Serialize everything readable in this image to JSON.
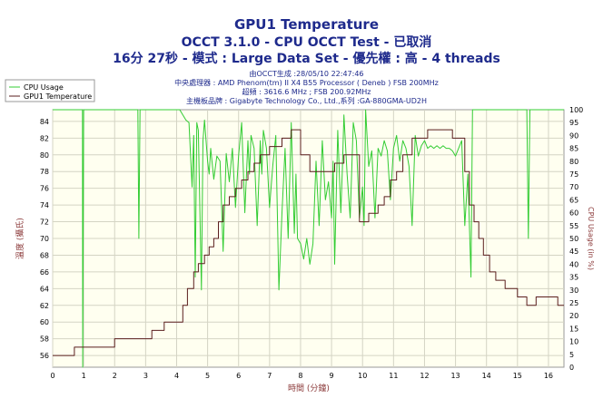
{
  "header": {
    "title": "GPU1 Temperature",
    "subtitle": "OCCT 3.1.0 - CPU OCCT Test - 已取消",
    "detail": "16分 27秒 - 模式 : Large Data Set - 優先權 : 高 - 4 threads",
    "info_lines": [
      "由OCCT生成 :28/05/10 22:47:46",
      "中央處理器 : AMD Phenom(tm) II X4 B55 Processor ( Deneb ) FSB 200MHz",
      "超頻 : 3616.6 MHz ; FSB 200.92MHz",
      "主機板品牌 : Gigabyte Technology Co., Ltd.,系列 :GA-880GMA-UD2H"
    ]
  },
  "colors": {
    "cpu_usage": "#33cc33",
    "gpu_temp": "#5a1e1e",
    "plot_bg": "#fffff0",
    "title_text": "#1e2a8c",
    "right_axis_text": "#8b3a3a"
  },
  "chart_data": {
    "type": "line",
    "xlabel": "時間 (分鐘)",
    "ylabel_left": "溫度 (攝氏)",
    "ylabel_right": "CPU Usage (in %)",
    "xlim": [
      0,
      16.5
    ],
    "ylim_left": [
      54.6,
      85.4
    ],
    "ylim_right": [
      0,
      100
    ],
    "x_ticks": [
      0,
      1,
      2,
      3,
      4,
      5,
      6,
      7,
      8,
      9,
      10,
      11,
      12,
      13,
      14,
      15,
      16
    ],
    "y_ticks_left": [
      56,
      58,
      60,
      62,
      64,
      66,
      68,
      70,
      72,
      74,
      76,
      78,
      80,
      82,
      84
    ],
    "y_ticks_right": [
      0,
      5,
      10,
      15,
      20,
      25,
      30,
      35,
      40,
      45,
      50,
      55,
      60,
      65,
      70,
      75,
      80,
      85,
      90,
      95,
      100
    ],
    "grid": true,
    "legend": "top-left",
    "series": [
      {
        "name": "CPU Usage",
        "axis": "right",
        "x": [
          0,
          0.96,
          0.97,
          1.0,
          1.02,
          1.05,
          2.75,
          2.78,
          2.82,
          2.85,
          4.1,
          4.2,
          4.3,
          4.4,
          4.5,
          4.55,
          4.6,
          4.65,
          4.7,
          4.8,
          4.85,
          4.9,
          5.0,
          5.05,
          5.1,
          5.2,
          5.3,
          5.4,
          5.5,
          5.6,
          5.7,
          5.8,
          5.9,
          6.0,
          6.1,
          6.2,
          6.3,
          6.35,
          6.4,
          6.5,
          6.6,
          6.7,
          6.75,
          6.8,
          6.9,
          7.0,
          7.1,
          7.2,
          7.3,
          7.4,
          7.5,
          7.6,
          7.7,
          7.8,
          7.85,
          7.9,
          8.0,
          8.1,
          8.2,
          8.3,
          8.4,
          8.5,
          8.6,
          8.7,
          8.8,
          8.9,
          9.0,
          9.05,
          9.1,
          9.2,
          9.3,
          9.35,
          9.4,
          9.5,
          9.6,
          9.7,
          9.8,
          9.9,
          10.0,
          10.05,
          10.1,
          10.2,
          10.3,
          10.4,
          10.5,
          10.6,
          10.7,
          10.8,
          10.9,
          11.0,
          11.1,
          11.2,
          11.3,
          11.4,
          11.5,
          11.6,
          11.7,
          11.8,
          11.9,
          12.0,
          12.1,
          12.2,
          12.3,
          12.4,
          12.5,
          12.6,
          12.7,
          12.8,
          12.9,
          13.0,
          13.1,
          13.2,
          13.3,
          13.4,
          13.5,
          13.55,
          13.6,
          15.3,
          15.35,
          15.4,
          15.5,
          16.5
        ],
        "values": [
          100,
          100,
          0,
          100,
          100,
          100,
          100,
          50,
          100,
          100,
          100,
          98,
          96,
          95,
          70,
          90,
          35,
          95,
          92,
          30,
          88,
          96,
          80,
          75,
          85,
          73,
          82,
          80,
          45,
          83,
          72,
          85,
          62,
          82,
          95,
          60,
          88,
          75,
          90,
          85,
          55,
          88,
          75,
          92,
          85,
          62,
          78,
          90,
          30,
          60,
          85,
          50,
          95,
          52,
          75,
          50,
          48,
          42,
          50,
          40,
          48,
          80,
          55,
          88,
          65,
          72,
          58,
          80,
          40,
          92,
          60,
          77,
          98,
          75,
          58,
          95,
          88,
          58,
          70,
          55,
          100,
          78,
          84,
          58,
          85,
          82,
          88,
          84,
          65,
          85,
          90,
          80,
          88,
          85,
          78,
          55,
          90,
          82,
          86,
          88,
          85,
          86,
          85,
          86,
          85,
          86,
          85,
          85,
          84,
          82,
          85,
          88,
          55,
          75,
          35,
          100,
          100,
          100,
          50,
          100,
          100,
          100
        ]
      },
      {
        "name": "GPU1 Temperature",
        "axis": "left",
        "x": [
          0,
          0.7,
          0.7,
          2.0,
          2.0,
          3.2,
          3.2,
          3.6,
          3.6,
          4.2,
          4.2,
          4.35,
          4.35,
          4.55,
          4.55,
          4.7,
          4.7,
          4.9,
          4.9,
          5.05,
          5.05,
          5.2,
          5.2,
          5.35,
          5.35,
          5.5,
          5.5,
          5.7,
          5.7,
          5.9,
          5.9,
          6.1,
          6.1,
          6.3,
          6.3,
          6.5,
          6.5,
          6.7,
          6.7,
          7.0,
          7.0,
          7.4,
          7.4,
          7.7,
          7.7,
          8.0,
          8.0,
          8.3,
          8.3,
          9.1,
          9.1,
          9.4,
          9.4,
          9.9,
          9.9,
          10.2,
          10.2,
          10.5,
          10.5,
          10.7,
          10.7,
          10.9,
          10.9,
          11.1,
          11.1,
          11.3,
          11.3,
          11.6,
          11.6,
          12.1,
          12.1,
          12.9,
          12.9,
          13.3,
          13.3,
          13.45,
          13.45,
          13.6,
          13.6,
          13.75,
          13.75,
          13.9,
          13.9,
          14.1,
          14.1,
          14.3,
          14.3,
          14.6,
          14.6,
          15.0,
          15.0,
          15.3,
          15.3,
          15.6,
          15.6,
          16.3,
          16.3,
          16.5
        ],
        "values": [
          56,
          56,
          57,
          57,
          58,
          58,
          59,
          59,
          60,
          60,
          62,
          62,
          64,
          64,
          66,
          66,
          67,
          67,
          68,
          68,
          69,
          69,
          70,
          70,
          72,
          72,
          74,
          74,
          75,
          75,
          76,
          76,
          77,
          77,
          78,
          78,
          79,
          79,
          80,
          80,
          81,
          81,
          82,
          82,
          83,
          83,
          80,
          80,
          78,
          78,
          79,
          79,
          80,
          80,
          72,
          72,
          73,
          73,
          74,
          74,
          75,
          75,
          77,
          77,
          78,
          78,
          80,
          80,
          82,
          82,
          83,
          83,
          82,
          82,
          78,
          78,
          74,
          74,
          72,
          72,
          70,
          70,
          68,
          68,
          66,
          66,
          65,
          65,
          64,
          64,
          63,
          63,
          62,
          62,
          63,
          63,
          62,
          62
        ]
      }
    ]
  }
}
